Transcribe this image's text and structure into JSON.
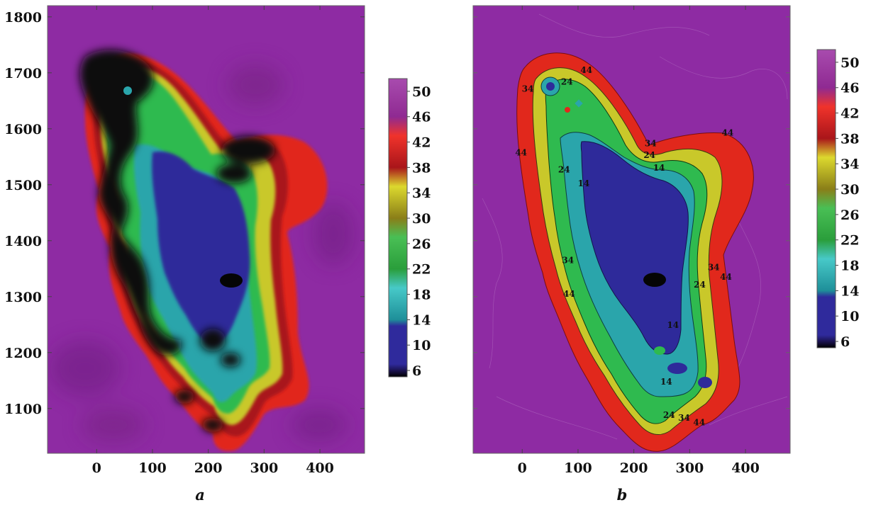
{
  "chart_data": [
    {
      "type": "heatmap",
      "panel_label": "a",
      "x_ticks": [
        0,
        100,
        200,
        300,
        400
      ],
      "y_ticks": [
        1100,
        1200,
        1300,
        1400,
        1500,
        1600,
        1700,
        1800
      ],
      "xlim": [
        -88,
        480
      ],
      "ylim": [
        1020,
        1820
      ],
      "colorbar": {
        "ticks": [
          6,
          10,
          14,
          18,
          22,
          26,
          30,
          34,
          38,
          42,
          46,
          50
        ],
        "range": [
          5,
          52
        ]
      },
      "contour_labels": []
    },
    {
      "type": "heatmap",
      "panel_label": "b",
      "x_ticks": [
        0,
        100,
        200,
        300,
        400
      ],
      "y_ticks": [],
      "xlim": [
        -88,
        480
      ],
      "ylim": [
        1020,
        1820
      ],
      "colorbar": {
        "ticks": [
          6,
          10,
          14,
          18,
          22,
          26,
          30,
          34,
          38,
          42,
          46,
          50
        ],
        "range": [
          5,
          52
        ]
      },
      "contour_labels": [
        {
          "text": "44",
          "x": 115,
          "y": 1700
        },
        {
          "text": "24",
          "x": 80,
          "y": 1679
        },
        {
          "text": "34",
          "x": 10,
          "y": 1666
        },
        {
          "text": "44",
          "x": 368,
          "y": 1588
        },
        {
          "text": "34",
          "x": 230,
          "y": 1569
        },
        {
          "text": "24",
          "x": 228,
          "y": 1548
        },
        {
          "text": "14",
          "x": 245,
          "y": 1525
        },
        {
          "text": "44",
          "x": -2,
          "y": 1552
        },
        {
          "text": "24",
          "x": 75,
          "y": 1522
        },
        {
          "text": "14",
          "x": 110,
          "y": 1497
        },
        {
          "text": "34",
          "x": 82,
          "y": 1360
        },
        {
          "text": "34",
          "x": 343,
          "y": 1347
        },
        {
          "text": "44",
          "x": 365,
          "y": 1330
        },
        {
          "text": "24",
          "x": 318,
          "y": 1316
        },
        {
          "text": "44",
          "x": 84,
          "y": 1300
        },
        {
          "text": "14",
          "x": 270,
          "y": 1244
        },
        {
          "text": "14",
          "x": 258,
          "y": 1143
        },
        {
          "text": "24",
          "x": 263,
          "y": 1083
        },
        {
          "text": "34",
          "x": 290,
          "y": 1078
        },
        {
          "text": "44",
          "x": 317,
          "y": 1070
        }
      ]
    }
  ],
  "colors": {
    "background_field": "#8e2ba3",
    "dark_low": "#0a0a0a",
    "band_colors": [
      "#0a0a0a",
      "#2e2a9a",
      "#2aa5ab",
      "#2fba4f",
      "#c9c82a",
      "#e1281c",
      "#a52ca6",
      "#8e2ba3"
    ]
  },
  "colorbar_gradient": [
    {
      "v": 5,
      "c": "#000000"
    },
    {
      "v": 6,
      "c": "#1a1250"
    },
    {
      "v": 7,
      "c": "#2f2a9c"
    },
    {
      "v": 13,
      "c": "#2f2a9c"
    },
    {
      "v": 14,
      "c": "#1e8f99"
    },
    {
      "v": 19,
      "c": "#47c9c8"
    },
    {
      "v": 22,
      "c": "#2a9e3b"
    },
    {
      "v": 27,
      "c": "#49bf55"
    },
    {
      "v": 30,
      "c": "#8a7e18"
    },
    {
      "v": 35,
      "c": "#dcd92e"
    },
    {
      "v": 38,
      "c": "#a9151a"
    },
    {
      "v": 43,
      "c": "#f0332b"
    },
    {
      "v": 46,
      "c": "#8f2a92"
    },
    {
      "v": 52,
      "c": "#a84bae"
    }
  ]
}
